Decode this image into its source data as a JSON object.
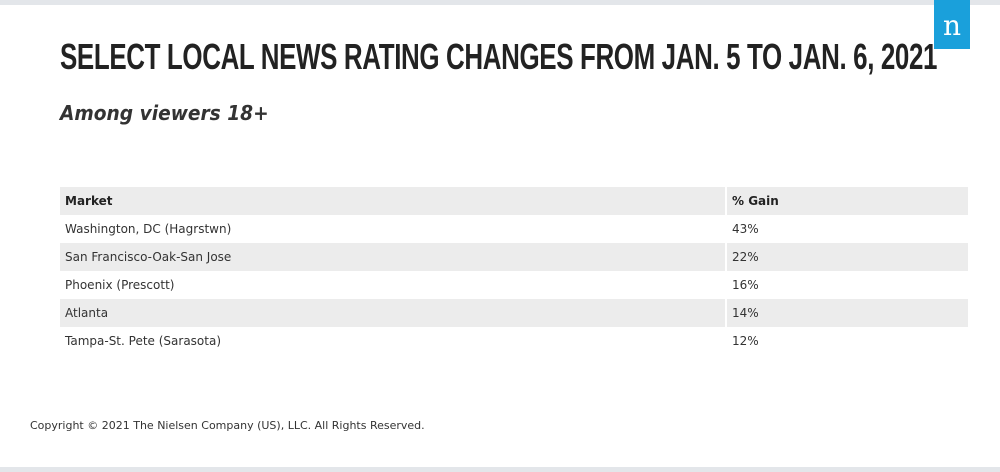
{
  "brand": {
    "logo_letter": "n",
    "logo_color": "#1aa0db"
  },
  "header": {
    "title": "SELECT LOCAL NEWS RATING CHANGES FROM JAN. 5 TO JAN. 6, 2021",
    "subtitle": "Among viewers 18+"
  },
  "chart_data": {
    "type": "table",
    "title": "SELECT LOCAL NEWS RATING CHANGES FROM JAN. 5 TO JAN. 6, 2021",
    "subtitle": "Among viewers 18+",
    "columns": [
      "Market",
      "% Gain"
    ],
    "rows": [
      [
        "Washington, DC (Hagrstwn)",
        "43%"
      ],
      [
        "San Francisco-Oak-San Jose",
        "22%"
      ],
      [
        "Phoenix (Prescott)",
        "16%"
      ],
      [
        "Atlanta",
        "14%"
      ],
      [
        "Tampa-St. Pete (Sarasota)",
        "12%"
      ]
    ],
    "values": [
      43,
      22,
      16,
      14,
      12
    ]
  },
  "footer": {
    "copyright": "Copyright © 2021 The Nielsen Company (US), LLC. All Rights Reserved."
  }
}
